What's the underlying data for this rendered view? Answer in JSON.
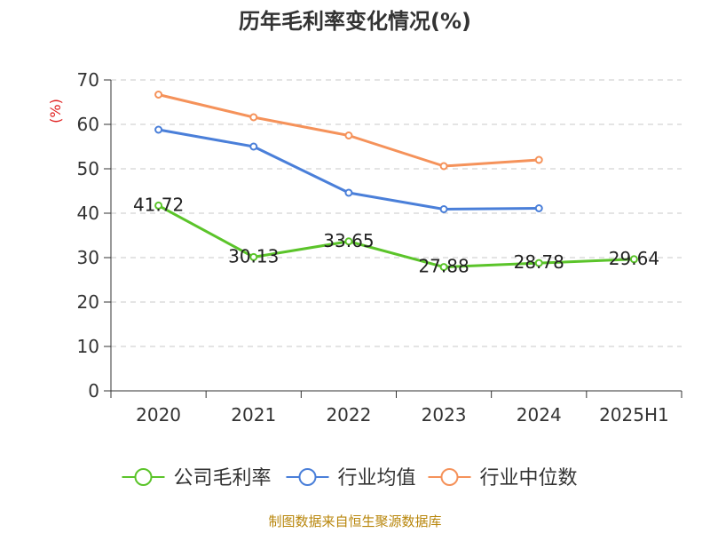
{
  "chart_data": {
    "type": "line",
    "title": "历年毛利率变化情况(%)",
    "ylabel": "(%)",
    "xlabel": "",
    "categories": [
      "2020",
      "2021",
      "2022",
      "2023",
      "2024",
      "2025H1"
    ],
    "ylim": [
      0,
      70
    ],
    "yticks": [
      "0",
      "10",
      "20",
      "30",
      "40",
      "50",
      "60",
      "70"
    ],
    "grid": true,
    "legend_position": "bottom",
    "series": [
      {
        "name": "公司毛利率",
        "color": "#5bc42a",
        "values": [
          41.72,
          30.13,
          33.65,
          27.88,
          28.78,
          29.64
        ],
        "labels": [
          "41.72",
          "30.13",
          "33.65",
          "27.88",
          "28.78",
          "29.64"
        ]
      },
      {
        "name": "行业均值",
        "color": "#4a7fd9",
        "values": [
          58.8,
          55.0,
          44.6,
          40.9,
          41.1,
          null
        ]
      },
      {
        "name": "行业中位数",
        "color": "#f5925a",
        "values": [
          66.7,
          61.6,
          57.5,
          50.6,
          52.0,
          null
        ]
      }
    ]
  },
  "source": "制图数据来自恒生聚源数据库"
}
